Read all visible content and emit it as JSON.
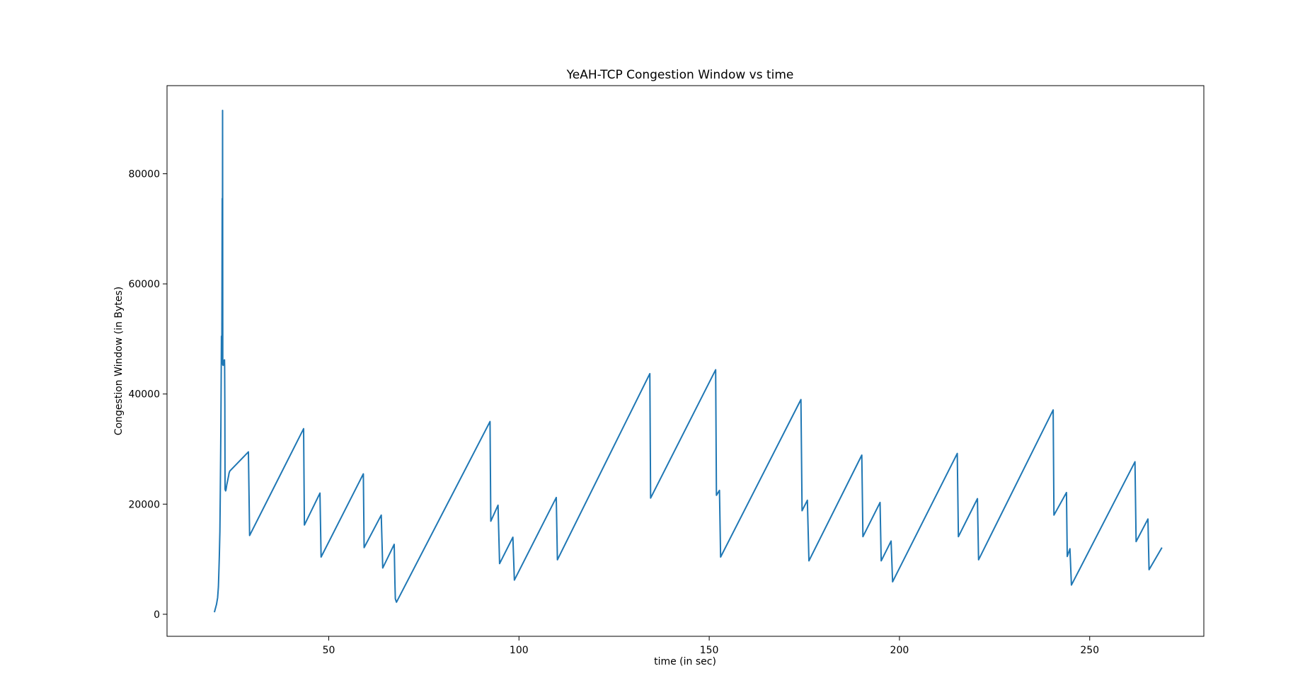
{
  "chart_data": {
    "type": "line",
    "title": "YeAH-TCP Congestion Window vs time",
    "xlabel": "time (in sec)",
    "ylabel": "Congestion Window (in Bytes)",
    "xlim": [
      7.5,
      280
    ],
    "ylim": [
      -4000,
      96000
    ],
    "xticks": [
      50,
      100,
      150,
      200,
      250
    ],
    "xtick_labels": [
      "50",
      "100",
      "150",
      "200",
      "250"
    ],
    "yticks": [
      0,
      20000,
      40000,
      60000,
      80000
    ],
    "ytick_labels": [
      "0",
      "20000",
      "40000",
      "60000",
      "80000"
    ],
    "grid": false,
    "legend": "none",
    "series": [
      {
        "color": "#1f77b4",
        "x": [
          20,
          20.5,
          20.8,
          21.0,
          21.1,
          21.25,
          21.4,
          21.5,
          21.65,
          21.8,
          21.9,
          22.0,
          22.05,
          22.1,
          22.15,
          22.25,
          22.35,
          22.45,
          22.6,
          22.65,
          22.7,
          22.75,
          22.9,
          23.0,
          23.2,
          23.5,
          23.7,
          23.8,
          24.0,
          28.9,
          29.2,
          43.4,
          43.6,
          47.7,
          48.0,
          59.1,
          59.3,
          63.8,
          64.2,
          67.2,
          67.4,
          67.5,
          67.8,
          92.4,
          92.6,
          94.5,
          94.9,
          98.4,
          98.8,
          109.8,
          110.1,
          134.4,
          134.6,
          151.7,
          151.9,
          152.7,
          153.0,
          174.1,
          174.4,
          175.8,
          176.2,
          190.1,
          190.4,
          194.9,
          195.2,
          197.8,
          198.2,
          215.2,
          215.5,
          220.5,
          220.8,
          240.4,
          240.6,
          243.9,
          244.1,
          244.8,
          245.2,
          261.9,
          262.2,
          265.3,
          265.6,
          268.9
        ],
        "values": [
          500,
          1800,
          3000,
          5000,
          7000,
          10500,
          15000,
          22500,
          34000,
          50500,
          45500,
          75500,
          45800,
          91500,
          45300,
          45200,
          45600,
          46100,
          46200,
          45000,
          38000,
          22700,
          22400,
          22600,
          23500,
          24500,
          25200,
          25600,
          26000,
          29500,
          14300,
          33700,
          16200,
          22000,
          10400,
          25500,
          12100,
          18000,
          8400,
          12700,
          5800,
          2800,
          2200,
          35000,
          16900,
          19800,
          9200,
          14000,
          6200,
          21200,
          9900,
          43700,
          21100,
          44400,
          21600,
          22500,
          10400,
          39000,
          18800,
          20700,
          9700,
          28900,
          14100,
          20300,
          9700,
          13300,
          5900,
          29200,
          14100,
          21000,
          9900,
          37100,
          18000,
          22100,
          10500,
          11900,
          5300,
          27700,
          13200,
          17300,
          8100,
          12000
        ]
      }
    ]
  }
}
